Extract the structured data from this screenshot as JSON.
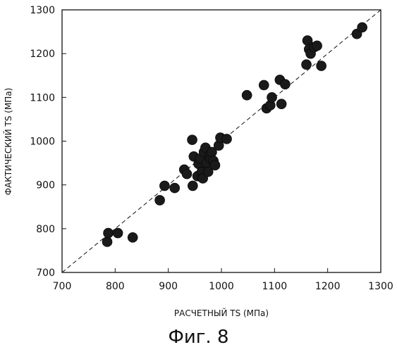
{
  "caption": "Фиг. 8",
  "chart_data": {
    "type": "scatter",
    "title": "",
    "xlabel": "РАСЧЕТНЫЙ TS (МПа)",
    "ylabel": "ФАКТИЧЕСКИЙ TS (МПа)",
    "xlim": [
      700,
      1300
    ],
    "ylim": [
      700,
      1300
    ],
    "xticks": [
      700,
      800,
      900,
      1000,
      1100,
      1200,
      1300
    ],
    "yticks": [
      700,
      800,
      900,
      1000,
      1100,
      1200,
      1300
    ],
    "reference_line": "y = x (dashed)",
    "grid": false,
    "marker_color": "#1a1a1a",
    "points": [
      [
        785,
        770
      ],
      [
        787,
        790
      ],
      [
        805,
        790
      ],
      [
        833,
        780
      ],
      [
        884,
        865
      ],
      [
        893,
        898
      ],
      [
        912,
        893
      ],
      [
        930,
        935
      ],
      [
        935,
        925
      ],
      [
        946,
        898
      ],
      [
        945,
        1003
      ],
      [
        948,
        965
      ],
      [
        955,
        920
      ],
      [
        957,
        948
      ],
      [
        960,
        960
      ],
      [
        963,
        930
      ],
      [
        965,
        915
      ],
      [
        967,
        975
      ],
      [
        970,
        985
      ],
      [
        972,
        950
      ],
      [
        975,
        930
      ],
      [
        978,
        968
      ],
      [
        980,
        960
      ],
      [
        982,
        975
      ],
      [
        985,
        955
      ],
      [
        988,
        945
      ],
      [
        995,
        990
      ],
      [
        998,
        1008
      ],
      [
        1010,
        1005
      ],
      [
        1048,
        1105
      ],
      [
        1080,
        1128
      ],
      [
        1085,
        1075
      ],
      [
        1092,
        1082
      ],
      [
        1095,
        1100
      ],
      [
        1110,
        1140
      ],
      [
        1113,
        1085
      ],
      [
        1120,
        1130
      ],
      [
        1160,
        1175
      ],
      [
        1162,
        1230
      ],
      [
        1165,
        1210
      ],
      [
        1168,
        1200
      ],
      [
        1175,
        1215
      ],
      [
        1180,
        1218
      ],
      [
        1188,
        1172
      ],
      [
        1255,
        1245
      ],
      [
        1265,
        1260
      ]
    ]
  }
}
